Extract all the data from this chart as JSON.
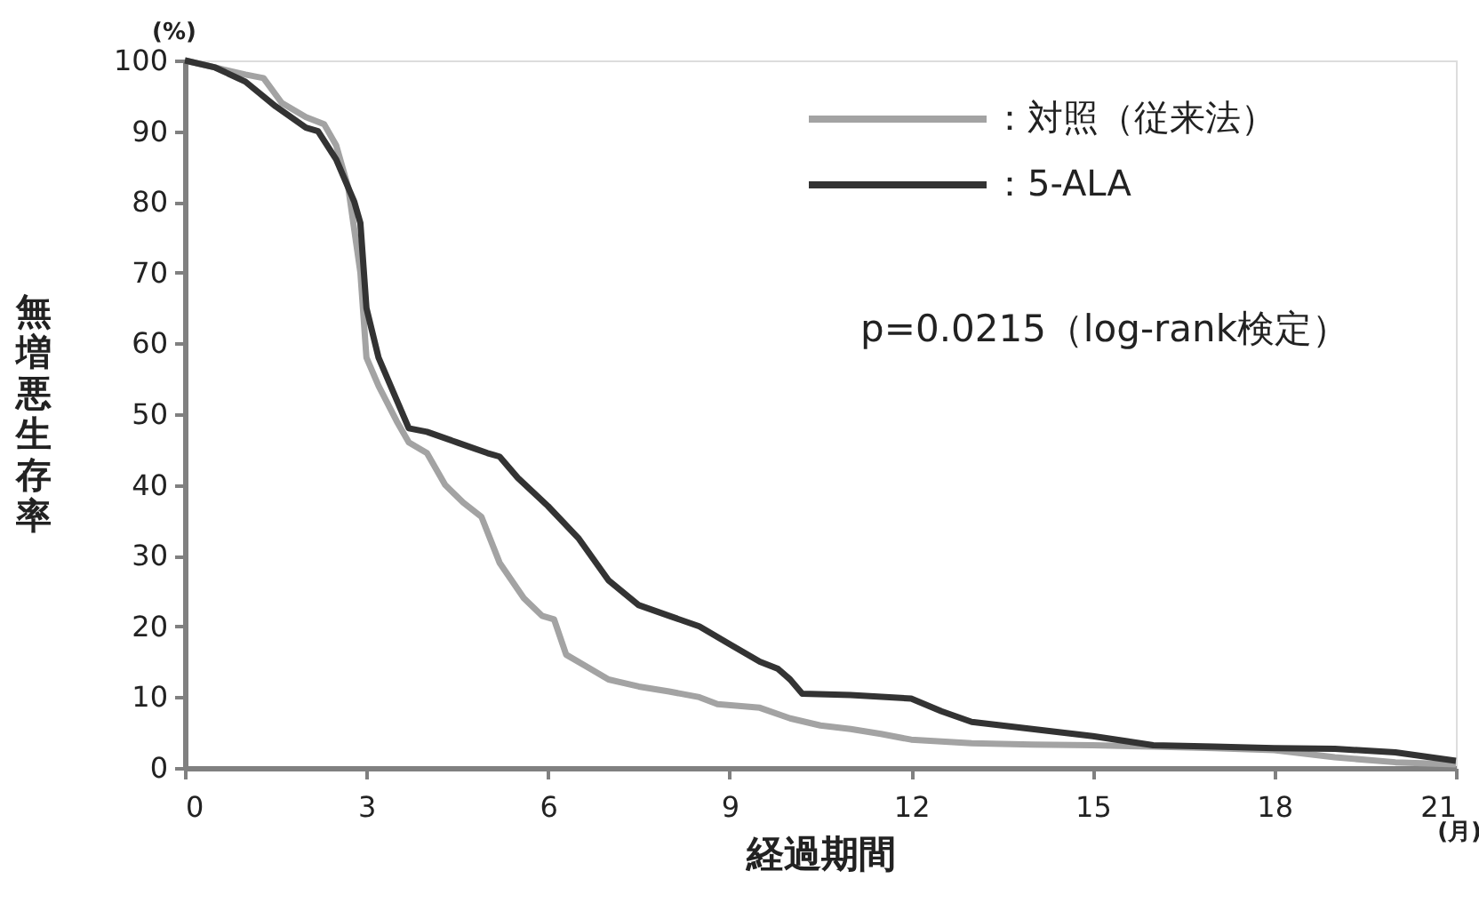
{
  "chart_data": {
    "type": "line",
    "xlabel": "経過期間",
    "ylabel": "無増悪生存率",
    "annotations": [
      "(%)",
      "(月)",
      "p=0.0215（log-rank検定）"
    ],
    "xlim": [
      0,
      21
    ],
    "xticks": [
      0,
      3,
      6,
      9,
      12,
      15,
      18,
      21
    ],
    "ylim": [
      0,
      100
    ],
    "yticks": [
      0,
      10,
      20,
      30,
      40,
      50,
      60,
      70,
      80,
      90,
      100
    ],
    "grid": false,
    "legend": "top right",
    "marker": "none",
    "line_style": "solid",
    "series": [
      {
        "name": "：対照（従来法）",
        "color": "#a3a3a3",
        "x": [
          0,
          0.5,
          1,
          1.3,
          1.6,
          2,
          2.3,
          2.5,
          2.7,
          2.9,
          3.0,
          3.2,
          3.5,
          3.7,
          4.0,
          4.3,
          4.6,
          4.9,
          5.2,
          5.6,
          5.9,
          6.1,
          6.3,
          6.7,
          7,
          7.5,
          8,
          8.5,
          8.8,
          9.5,
          10,
          10.5,
          11,
          11.5,
          12,
          13,
          14,
          15,
          16,
          17,
          18,
          19,
          20,
          21
        ],
        "values": [
          100,
          99,
          98,
          97.5,
          94,
          92,
          91,
          88,
          82,
          70,
          58,
          54,
          49,
          46,
          44.5,
          40,
          37.5,
          35.5,
          29,
          24,
          21.5,
          21,
          16,
          14,
          12.5,
          11.5,
          10.8,
          10,
          9,
          8.5,
          7,
          6,
          5.5,
          4.8,
          4,
          3.5,
          3.3,
          3.2,
          3,
          2.8,
          2.5,
          1.5,
          0.8,
          0.5
        ]
      },
      {
        "name": "：5-ALA",
        "color": "#333333",
        "x": [
          0,
          0.5,
          1,
          1.5,
          2,
          2.2,
          2.5,
          2.8,
          2.9,
          3.0,
          3.2,
          3.5,
          3.7,
          4,
          4.5,
          5,
          5.2,
          5.5,
          6,
          6.5,
          7,
          7.5,
          8,
          8.5,
          9,
          9.5,
          9.8,
          10,
          10.2,
          11,
          12,
          12.5,
          13,
          14,
          15,
          16,
          17,
          18,
          19,
          20,
          21
        ],
        "values": [
          100,
          99,
          97,
          93.5,
          90.5,
          90,
          86,
          80,
          77,
          65,
          58,
          52,
          48,
          47.5,
          46,
          44.5,
          44,
          41,
          37,
          32.5,
          26.5,
          23,
          21.5,
          20,
          17.5,
          15,
          14,
          12.5,
          10.5,
          10.3,
          9.8,
          8,
          6.5,
          5.5,
          4.5,
          3.2,
          3,
          2.8,
          2.7,
          2.2,
          1
        ]
      }
    ]
  }
}
